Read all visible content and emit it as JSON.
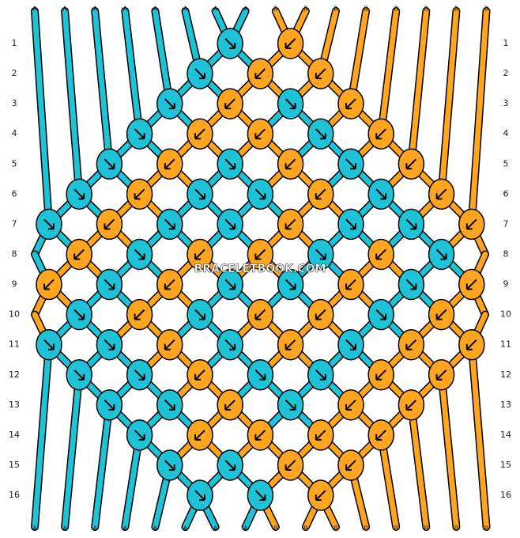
{
  "strings": {
    "top": [
      "A",
      "A",
      "A",
      "A",
      "A",
      "A",
      "A",
      "A",
      "B",
      "B",
      "B",
      "B",
      "B",
      "B",
      "B",
      "B"
    ],
    "bottom": [
      "A",
      "A",
      "A",
      "A",
      "A",
      "A",
      "A",
      "A",
      "B",
      "B",
      "B",
      "B",
      "B",
      "B",
      "B",
      "B"
    ]
  },
  "rows": {
    "left": [
      "1",
      "2",
      "3",
      "4",
      "5",
      "6",
      "7",
      "8",
      "9",
      "10",
      "11",
      "12",
      "13",
      "14",
      "15",
      "16"
    ],
    "right": [
      "1",
      "2",
      "3",
      "4",
      "5",
      "6",
      "7",
      "8",
      "9",
      "10",
      "11",
      "12",
      "13",
      "14",
      "15",
      "16"
    ]
  },
  "watermark": "BRACELETBOOK.COM"
}
